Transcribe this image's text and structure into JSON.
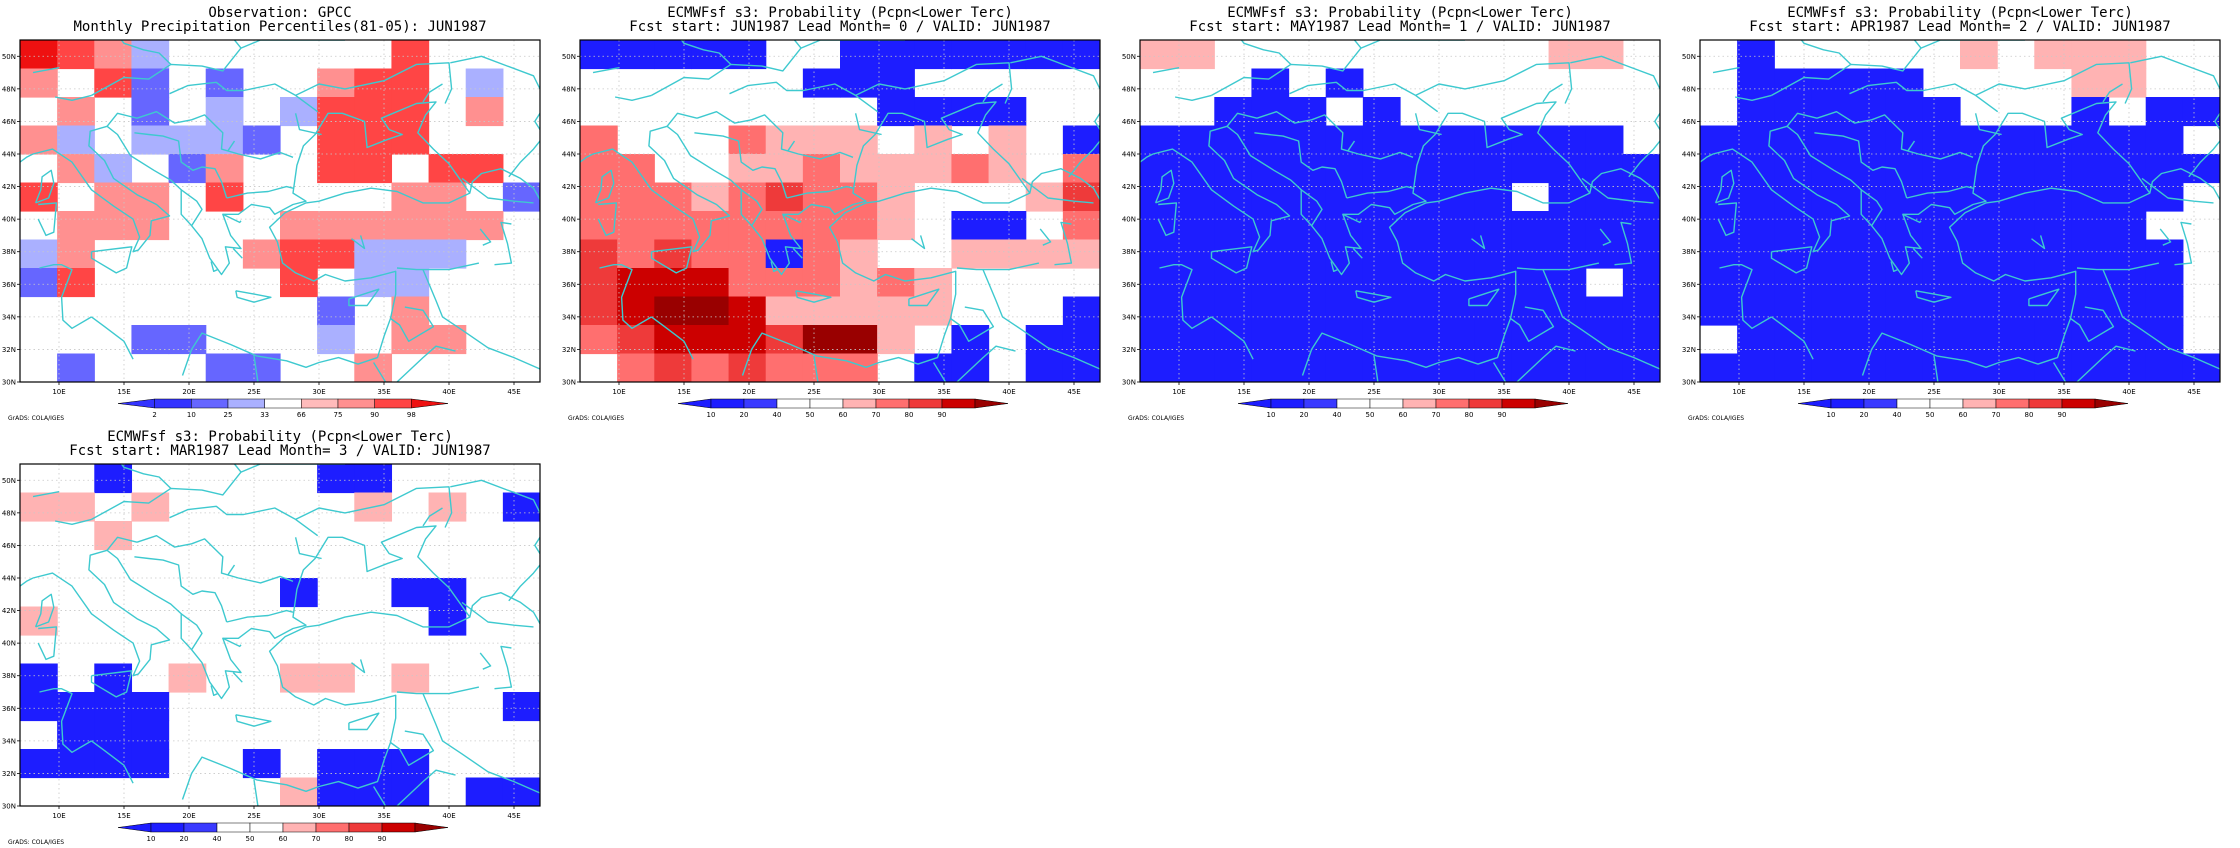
{
  "colors": {
    "coast": "#3ec9cf",
    "obs": {
      "2": "#3333ff",
      "10": "#6666ff",
      "25": "#aab0ff",
      "33": "#ffffff",
      "66": "#ffbbbb",
      "75": "#ff9090",
      "90": "#ff4545",
      "98": "#ee1111"
    },
    "prob": {
      "0": "#1d1dff",
      "10": "#3a3aff",
      "20": "#ffffff",
      "40": "#ffffff",
      "50": "#ffb3b3",
      "60": "#ff6f6f",
      "70": "#ee3a3a",
      "80": "#cc0000",
      "90": "#990000"
    }
  },
  "chart_data": [
    {
      "type": "heatmap",
      "title_line1": "Observation: GPCC",
      "title_line2": "Monthly Precipitation Percentiles(81-05): JUN1987",
      "scale": "obs",
      "colorbar_labels": [
        "2",
        "10",
        "25",
        "33",
        "66",
        "75",
        "90",
        "98"
      ],
      "credit": "GrADS: COLA/IGES",
      "lon_range": [
        7,
        47
      ],
      "lat_range": [
        30,
        51
      ],
      "x_ticks": [
        "10E",
        "15E",
        "20E",
        "25E",
        "30E",
        "35E",
        "40E",
        "45E"
      ],
      "y_ticks": [
        "30N",
        "32N",
        "34N",
        "36N",
        "38N",
        "40N",
        "42N",
        "44N",
        "46N",
        "48N",
        "50N"
      ],
      "grid": [
        "98 90 75 25 33 33 33 33 33 33 90 33 33 33",
        "75 33 90 10 33 10 33 33 75 90 90 33 25 33",
        "33 75 33 10 33 25 33 25 90 90 90 33 75 33",
        "75 25 33 25 25 25 10 33 90 90 90 33 33 33",
        "33 75 25 33 10 75 33 33 90 90 33 90 90 33",
        "90 33 75 75 33 90 33 33 33 33 75 75 33 10",
        "33 75 75 75 33 33 33 75 75 75 75 75 75 33",
        "25 75 33 33 33 33 75 90 90 25 25 25 33 33",
        "10 90 33 33 33 33 33 90 33 25 25 33 33 33",
        "33 33 33 33 33 33 33 33 10 33 75 33 33 33",
        "33 33 33 10 10 33 33 33 25 33 75 75 33 33",
        "33 10 33 33 33 10 10 33 33 75 33 33 33 33"
      ]
    },
    {
      "type": "heatmap",
      "title_line1": "ECMWFsf s3: Probability (Pcpn<Lower Terc)",
      "title_line2": "Fcst start: JUN1987  Lead Month= 0 / VALID: JUN1987",
      "scale": "prob",
      "colorbar_labels": [
        "10",
        "20",
        "40",
        "50",
        "60",
        "70",
        "80",
        "90"
      ],
      "credit": "GrADS: COLA/IGES",
      "lon_range": [
        7,
        47
      ],
      "lat_range": [
        30,
        51
      ],
      "x_ticks": [
        "10E",
        "15E",
        "20E",
        "25E",
        "30E",
        "35E",
        "40E",
        "45E"
      ],
      "y_ticks": [
        "30N",
        "32N",
        "34N",
        "36N",
        "38N",
        "40N",
        "42N",
        "44N",
        "46N",
        "48N",
        "50N"
      ],
      "grid": [
        "0 0 0 0 0 20 20 0 0 0 0 0 0 0",
        "20 20 20 20 20 20 0 0 0 20 20 20 20 20",
        "20 20 20 20 20 20 20 20 0 0 0 0 20 20",
        "60 20 20 20 60 50 50 50 20 50 20 50 20 0",
        "60 60 20 20 50 50 60 50 50 50 60 50 20 60",
        "60 60 60 50 60 70 60 60 50 20 20 20 50 70",
        "60 60 60 60 60 60 60 60 50 20 0 0 20 60",
        "70 60 70 60 60 0 60 50 20 20 50 50 50 50",
        "70 80 80 80 60 60 60 50 60 50 20 20 20 20",
        "70 80 90 90 80 50 50 50 50 50 20 20 20 0",
        "60 70 80 80 80 70 90 90 50 20 0 20 0 0",
        "20 60 70 60 70 60 60 60 20 0 0 20 0 0"
      ]
    },
    {
      "type": "heatmap",
      "title_line1": "ECMWFsf s3: Probability (Pcpn<Lower Terc)",
      "title_line2": "Fcst start: MAY1987  Lead Month= 1 / VALID: JUN1987",
      "scale": "prob",
      "colorbar_labels": [
        "10",
        "20",
        "40",
        "50",
        "60",
        "70",
        "80",
        "90"
      ],
      "credit": "GrADS: COLA/IGES",
      "lon_range": [
        7,
        47
      ],
      "lat_range": [
        30,
        51
      ],
      "x_ticks": [
        "10E",
        "15E",
        "20E",
        "25E",
        "30E",
        "35E",
        "40E",
        "45E"
      ],
      "y_ticks": [
        "30N",
        "32N",
        "34N",
        "36N",
        "38N",
        "40N",
        "42N",
        "44N",
        "46N",
        "48N",
        "50N"
      ],
      "grid": [
        "50 50 20 20 20 20 20 20 20 20 20 50 50 20",
        "20 20 20 0 20 0 20 20 20 20 20 20 20 20",
        "20 20 0 0 0 20 0 20 20 20 20 20 20 20",
        "0 0 0 0 0 0 0 0 0 0 0 0 0 20",
        "0 0 0 0 0 0 0 0 0 0 0 0 0 0",
        "0 0 0 0 0 0 0 0 0 0 20 0 0 0",
        "0 0 0 0 0 0 0 0 0 0 0 0 0 0",
        "0 0 0 0 0 0 0 0 0 0 0 0 0 0",
        "0 0 0 0 0 0 0 0 0 0 0 0 20 0",
        "0 0 0 0 0 0 0 0 0 0 0 0 0 0",
        "0 0 0 0 0 0 0 0 0 0 0 0 0 0",
        "0 0 0 0 0 0 0 0 0 0 0 0 0 0"
      ]
    },
    {
      "type": "heatmap",
      "title_line1": "ECMWFsf s3: Probability (Pcpn<Lower Terc)",
      "title_line2": "Fcst start: APR1987  Lead Month= 2 / VALID: JUN1987",
      "scale": "prob",
      "colorbar_labels": [
        "10",
        "20",
        "40",
        "50",
        "60",
        "70",
        "80",
        "90"
      ],
      "credit": "GrADS: COLA/IGES",
      "lon_range": [
        7,
        47
      ],
      "lat_range": [
        30,
        51
      ],
      "x_ticks": [
        "10E",
        "15E",
        "20E",
        "25E",
        "30E",
        "35E",
        "40E",
        "45E"
      ],
      "y_ticks": [
        "30N",
        "32N",
        "34N",
        "36N",
        "38N",
        "40N",
        "42N",
        "44N",
        "46N",
        "48N",
        "50N"
      ],
      "grid": [
        "20 0 20 20 20 20 20 50 20 50 50 50 20 20",
        "20 0 0 0 0 0 20 20 20 20 50 50 20 20",
        "20 0 0 0 0 0 0 20 20 20 0 20 0 0",
        "0 0 0 0 0 0 0 0 0 0 0 0 0 20",
        "0 0 0 0 0 0 0 0 0 0 0 0 0 0",
        "0 0 0 0 0 0 0 0 0 0 0 0 0 20",
        "0 0 0 0 0 0 0 0 0 0 0 0 20 20",
        "0 0 0 0 0 0 0 0 0 0 0 0 0 20",
        "0 0 0 0 0 0 0 0 0 0 0 0 0 20",
        "0 0 0 0 0 0 0 0 0 0 0 0 0 20",
        "20 0 0 0 0 0 0 0 0 0 0 0 0 20",
        "0 0 0 0 0 0 0 0 0 0 0 0 0 0"
      ]
    },
    {
      "type": "heatmap",
      "title_line1": "ECMWFsf s3: Probability (Pcpn<Lower Terc)",
      "title_line2": "Fcst start: MAR1987  Lead Month= 3 / VALID: JUN1987",
      "scale": "prob",
      "colorbar_labels": [
        "10",
        "20",
        "40",
        "50",
        "60",
        "70",
        "80",
        "90"
      ],
      "credit": "GrADS: COLA/IGES",
      "lon_range": [
        7,
        47
      ],
      "lat_range": [
        30,
        51
      ],
      "x_ticks": [
        "10E",
        "15E",
        "20E",
        "25E",
        "30E",
        "35E",
        "40E",
        "45E"
      ],
      "y_ticks": [
        "30N",
        "32N",
        "34N",
        "36N",
        "38N",
        "40N",
        "42N",
        "44N",
        "46N",
        "48N",
        "50N"
      ],
      "grid": [
        "20 20 0 20 20 20 20 20 0 0 20 20 20 20",
        "50 50 20 50 20 20 20 20 20 50 20 50 20 0",
        "20 20 50 20 20 20 20 20 20 20 20 20 20 20",
        "20 20 20 20 20 20 20 20 20 20 20 20 20 20",
        "20 20 20 20 20 20 20 0 20 20 0 0 20 20",
        "50 20 20 20 20 20 20 20 20 20 20 0 20 20",
        "20 20 20 20 20 20 20 20 20 20 20 20 20 20",
        "0 20 0 20 50 20 20 50 50 20 50 20 20 20",
        "0 0 0 0 20 20 20 20 20 20 20 20 20 0",
        "20 0 0 0 20 20 20 20 20 20 20 20 20 20",
        "0 0 0 0 20 20 0 20 0 0 0 20 20 20",
        "20 20 20 20 20 20 20 50 0 0 0 20 0 0"
      ]
    }
  ]
}
